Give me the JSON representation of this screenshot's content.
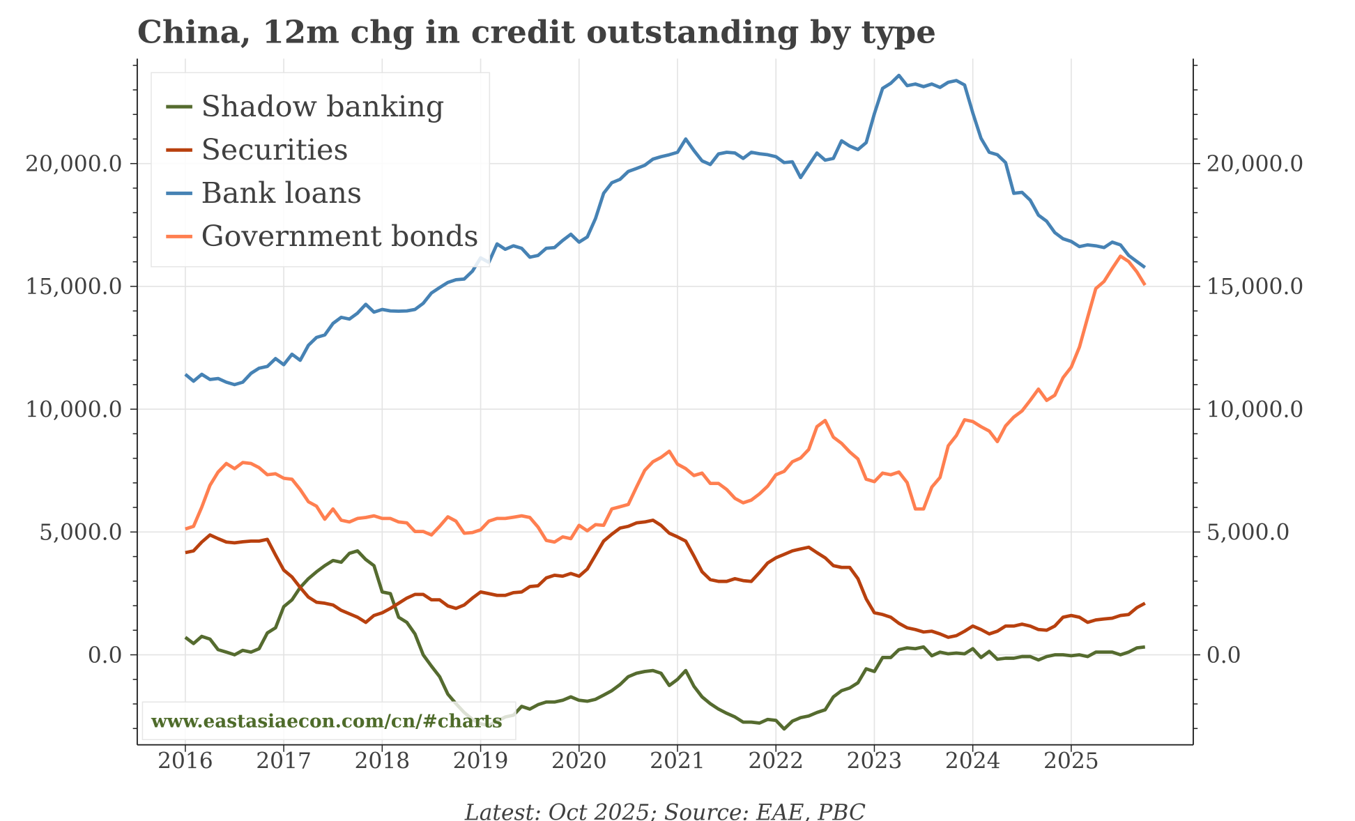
{
  "chart_data": {
    "type": "line",
    "title": "China, 12m chg in credit outstanding by type",
    "footer": "Latest: Oct 2025; Source: EAE, PBC",
    "watermark": "www.eastasiaecon.com/cn/#charts",
    "x_start": "2016-01",
    "frequency": "monthly",
    "xlim": [
      2015.5,
      2026.3
    ],
    "ylim": [
      -3665,
      24270
    ],
    "x_ticks": [
      "2016",
      "2017",
      "2018",
      "2019",
      "2020",
      "2021",
      "2022",
      "2023",
      "2024",
      "2025"
    ],
    "y_ticks": [
      0,
      5000,
      10000,
      15000,
      20000
    ],
    "y_tick_labels": [
      "0.0",
      "5,000.0",
      "10,000.0",
      "15,000.0",
      "20,000.0"
    ],
    "grid": true,
    "legend_position": "top-left",
    "series": [
      {
        "name": "Shadow banking",
        "color": "#556b2f",
        "values": [
          710,
          460,
          750,
          640,
          210,
          110,
          0,
          180,
          110,
          250,
          890,
          1100,
          1960,
          2240,
          2740,
          3100,
          3380,
          3630,
          3840,
          3770,
          4130,
          4230,
          3880,
          3630,
          2560,
          2490,
          1530,
          1320,
          850,
          0,
          -460,
          -890,
          -1600,
          -1990,
          -2350,
          -2630,
          -2810,
          -2880,
          -2700,
          -2530,
          -2460,
          -2100,
          -2210,
          -2030,
          -1920,
          -1920,
          -1850,
          -1710,
          -1850,
          -1890,
          -1810,
          -1640,
          -1460,
          -1210,
          -890,
          -750,
          -680,
          -640,
          -750,
          -1250,
          -1000,
          -640,
          -1280,
          -1710,
          -1990,
          -2210,
          -2380,
          -2530,
          -2740,
          -2740,
          -2780,
          -2630,
          -2670,
          -3020,
          -2700,
          -2560,
          -2490,
          -2350,
          -2240,
          -1710,
          -1460,
          -1350,
          -1140,
          -570,
          -680,
          -110,
          -110,
          210,
          280,
          250,
          320,
          -40,
          110,
          40,
          70,
          40,
          250,
          -110,
          140,
          -180,
          -140,
          -140,
          -70,
          -70,
          -210,
          -70,
          0,
          0,
          -40,
          0,
          -70,
          110,
          110,
          110,
          0,
          110,
          280,
          320
        ]
      },
      {
        "name": "Securities",
        "color": "#b8400e",
        "values": [
          4160,
          4230,
          4590,
          4880,
          4730,
          4590,
          4560,
          4600,
          4630,
          4630,
          4700,
          4060,
          3450,
          3170,
          2740,
          2350,
          2140,
          2100,
          2030,
          1810,
          1670,
          1530,
          1320,
          1600,
          1710,
          1890,
          2100,
          2310,
          2460,
          2460,
          2240,
          2240,
          1990,
          1890,
          2030,
          2310,
          2560,
          2490,
          2420,
          2420,
          2530,
          2560,
          2780,
          2810,
          3130,
          3240,
          3200,
          3310,
          3200,
          3490,
          4060,
          4630,
          4910,
          5160,
          5230,
          5370,
          5410,
          5480,
          5270,
          4950,
          4800,
          4630,
          4020,
          3380,
          3060,
          2990,
          2990,
          3100,
          3020,
          2990,
          3350,
          3740,
          3950,
          4090,
          4230,
          4310,
          4380,
          4160,
          3950,
          3630,
          3560,
          3560,
          3100,
          2280,
          1710,
          1640,
          1530,
          1280,
          1100,
          1030,
          930,
          960,
          850,
          710,
          780,
          960,
          1170,
          1030,
          850,
          960,
          1170,
          1170,
          1250,
          1170,
          1030,
          1000,
          1170,
          1530,
          1600,
          1530,
          1320,
          1420,
          1460,
          1490,
          1600,
          1640,
          1920,
          2100
        ]
      },
      {
        "name": "Bank loans",
        "color": "#4682b4",
        "values": [
          11420,
          11140,
          11420,
          11210,
          11250,
          11100,
          11000,
          11100,
          11460,
          11670,
          11740,
          12060,
          11810,
          12240,
          11990,
          12600,
          12920,
          13020,
          13490,
          13740,
          13670,
          13910,
          14270,
          13950,
          14060,
          14000,
          13990,
          14000,
          14060,
          14310,
          14730,
          14950,
          15160,
          15270,
          15300,
          15620,
          16160,
          15980,
          16730,
          16510,
          16650,
          16550,
          16190,
          16260,
          16550,
          16580,
          16870,
          17120,
          16800,
          17010,
          17760,
          18790,
          19220,
          19360,
          19680,
          19800,
          19930,
          20180,
          20280,
          20360,
          20460,
          21000,
          20530,
          20110,
          19960,
          20390,
          20460,
          20430,
          20210,
          20460,
          20400,
          20360,
          20280,
          20040,
          20070,
          19430,
          19930,
          20430,
          20140,
          20210,
          20930,
          20710,
          20570,
          20850,
          22030,
          23060,
          23270,
          23590,
          23170,
          23240,
          23130,
          23240,
          23100,
          23310,
          23380,
          23200,
          22060,
          21030,
          20460,
          20360,
          20040,
          18790,
          18830,
          18510,
          17900,
          17650,
          17190,
          16940,
          16830,
          16620,
          16690,
          16650,
          16580,
          16800,
          16690,
          16260,
          16010,
          15770
        ]
      },
      {
        "name": "Government bonds",
        "color": "#ff7f50",
        "values": [
          5120,
          5230,
          6010,
          6900,
          7440,
          7790,
          7580,
          7830,
          7790,
          7620,
          7330,
          7370,
          7190,
          7150,
          6730,
          6230,
          6050,
          5520,
          5940,
          5480,
          5410,
          5550,
          5590,
          5660,
          5550,
          5550,
          5410,
          5370,
          5020,
          5020,
          4880,
          5230,
          5620,
          5440,
          4950,
          4980,
          5090,
          5440,
          5550,
          5550,
          5600,
          5660,
          5590,
          5200,
          4660,
          4590,
          4800,
          4730,
          5270,
          5050,
          5300,
          5270,
          5940,
          6030,
          6120,
          6830,
          7510,
          7860,
          8040,
          8290,
          7760,
          7580,
          7300,
          7400,
          6980,
          6980,
          6730,
          6370,
          6190,
          6300,
          6550,
          6870,
          7330,
          7470,
          7860,
          8010,
          8360,
          9290,
          9540,
          8860,
          8610,
          8260,
          7970,
          7150,
          7050,
          7400,
          7330,
          7440,
          7010,
          5940,
          5940,
          6830,
          7220,
          8510,
          8930,
          9570,
          9500,
          9290,
          9110,
          8680,
          9320,
          9680,
          9930,
          10360,
          10820,
          10360,
          10570,
          11280,
          11710,
          12530,
          13740,
          14910,
          15200,
          15730,
          16230,
          16010,
          15590,
          15050
        ]
      }
    ]
  }
}
